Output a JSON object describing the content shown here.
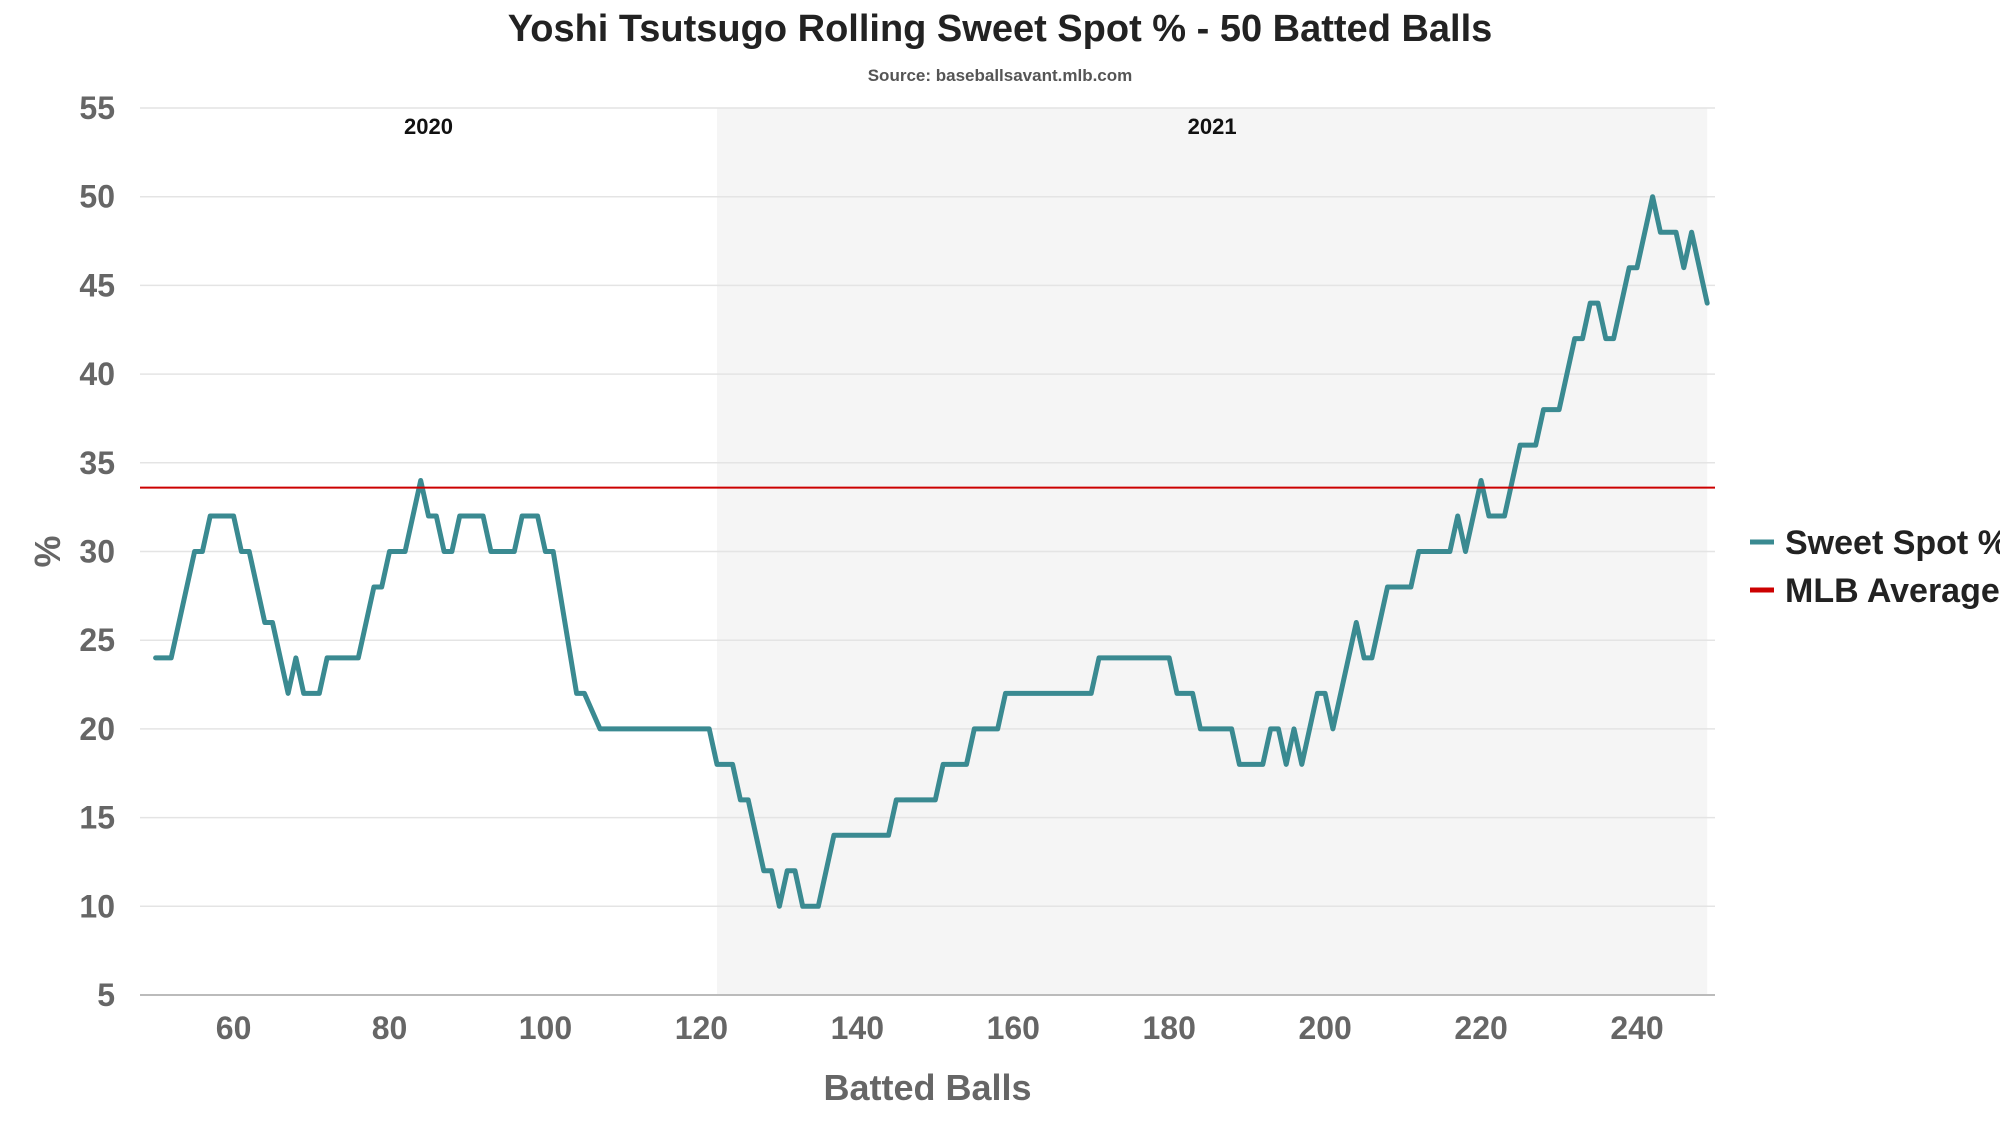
{
  "chart_data": {
    "type": "line",
    "title": "Yoshi Tsutsugo Rolling Sweet Spot % - 50 Batted Balls",
    "subtitle": "Source: baseballsavant.mlb.com",
    "xlabel": "Batted Balls",
    "ylabel": "%",
    "xlim": [
      48,
      250
    ],
    "ylim": [
      5,
      55
    ],
    "xticks": [
      60,
      80,
      100,
      120,
      140,
      160,
      180,
      200,
      220,
      240
    ],
    "yticks": [
      5,
      10,
      15,
      20,
      25,
      30,
      35,
      40,
      45,
      50,
      55
    ],
    "grid": "horizontal",
    "legend_position": "right",
    "seasons": [
      {
        "label": "2020",
        "x_range": [
          48,
          122
        ],
        "shaded": false
      },
      {
        "label": "2021",
        "x_range": [
          122,
          249
        ],
        "shaded": true
      }
    ],
    "series": [
      {
        "name": "Sweet Spot %",
        "color": "#3a8a91",
        "points": [
          [
            50,
            24
          ],
          [
            52,
            24
          ],
          [
            55,
            30
          ],
          [
            56,
            30
          ],
          [
            57,
            32
          ],
          [
            60,
            32
          ],
          [
            61,
            30
          ],
          [
            62,
            30
          ],
          [
            64,
            26
          ],
          [
            65,
            26
          ],
          [
            67,
            22
          ],
          [
            68,
            24
          ],
          [
            69,
            22
          ],
          [
            71,
            22
          ],
          [
            72,
            24
          ],
          [
            76,
            24
          ],
          [
            78,
            28
          ],
          [
            79,
            28
          ],
          [
            80,
            30
          ],
          [
            82,
            30
          ],
          [
            84,
            34
          ],
          [
            85,
            32
          ],
          [
            86,
            32
          ],
          [
            87,
            30
          ],
          [
            88,
            30
          ],
          [
            89,
            32
          ],
          [
            92,
            32
          ],
          [
            93,
            30
          ],
          [
            96,
            30
          ],
          [
            97,
            32
          ],
          [
            99,
            32
          ],
          [
            100,
            30
          ],
          [
            101,
            30
          ],
          [
            104,
            22
          ],
          [
            105,
            22
          ],
          [
            107,
            20
          ],
          [
            121,
            20
          ],
          [
            122,
            18
          ],
          [
            124,
            18
          ],
          [
            125,
            16
          ],
          [
            126,
            16
          ],
          [
            128,
            12
          ],
          [
            129,
            12
          ],
          [
            130,
            10
          ],
          [
            131,
            12
          ],
          [
            132,
            12
          ],
          [
            133,
            10
          ],
          [
            135,
            10
          ],
          [
            137,
            14
          ],
          [
            144,
            14
          ],
          [
            145,
            16
          ],
          [
            150,
            16
          ],
          [
            151,
            18
          ],
          [
            154,
            18
          ],
          [
            155,
            20
          ],
          [
            158,
            20
          ],
          [
            159,
            22
          ],
          [
            170,
            22
          ],
          [
            171,
            24
          ],
          [
            180,
            24
          ],
          [
            181,
            22
          ],
          [
            183,
            22
          ],
          [
            184,
            20
          ],
          [
            188,
            20
          ],
          [
            189,
            18
          ],
          [
            192,
            18
          ],
          [
            193,
            20
          ],
          [
            194,
            20
          ],
          [
            195,
            18
          ],
          [
            196,
            20
          ],
          [
            197,
            18
          ],
          [
            199,
            22
          ],
          [
            200,
            22
          ],
          [
            201,
            20
          ],
          [
            204,
            26
          ],
          [
            205,
            24
          ],
          [
            206,
            24
          ],
          [
            208,
            28
          ],
          [
            211,
            28
          ],
          [
            212,
            30
          ],
          [
            216,
            30
          ],
          [
            217,
            32
          ],
          [
            218,
            30
          ],
          [
            220,
            34
          ],
          [
            221,
            32
          ],
          [
            223,
            32
          ],
          [
            225,
            36
          ],
          [
            227,
            36
          ],
          [
            228,
            38
          ],
          [
            230,
            38
          ],
          [
            232,
            42
          ],
          [
            233,
            42
          ],
          [
            234,
            44
          ],
          [
            235,
            44
          ],
          [
            236,
            42
          ],
          [
            237,
            42
          ],
          [
            239,
            46
          ],
          [
            240,
            46
          ],
          [
            242,
            50
          ],
          [
            243,
            48
          ],
          [
            245,
            48
          ],
          [
            246,
            46
          ],
          [
            247,
            48
          ],
          [
            249,
            44
          ]
        ]
      },
      {
        "name": "MLB Average",
        "color": "#cc0000",
        "constant": 33.6
      }
    ]
  }
}
